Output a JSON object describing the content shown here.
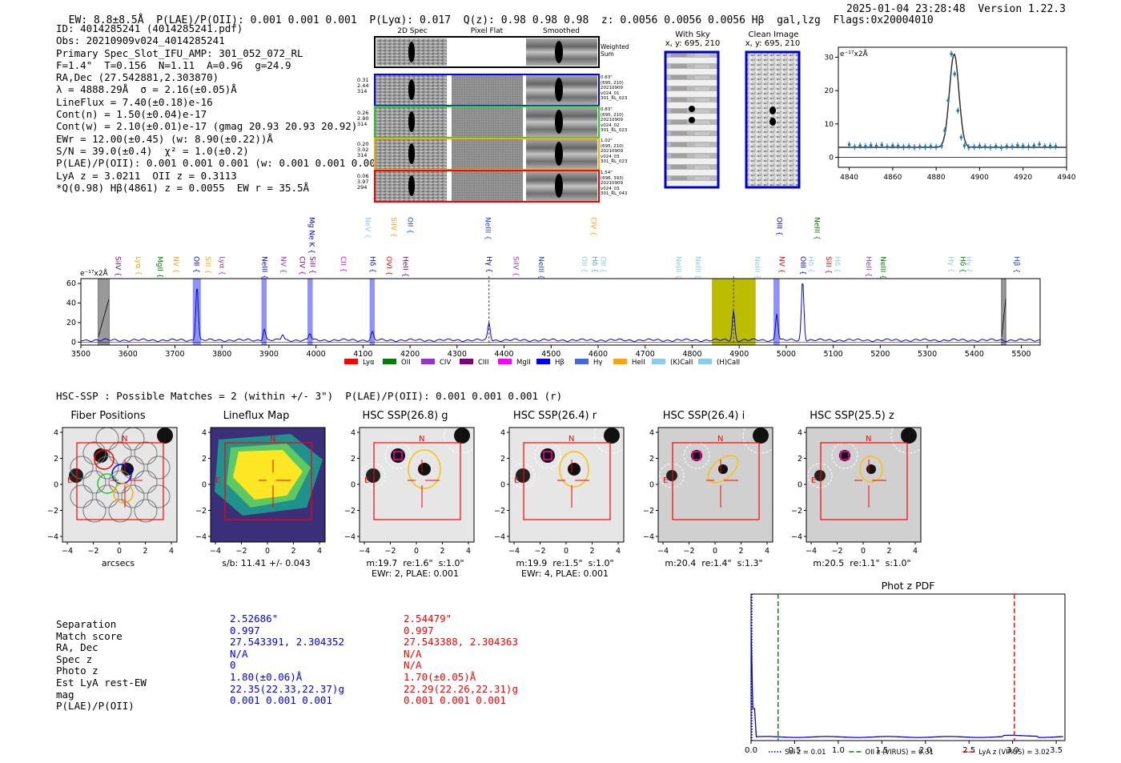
{
  "header": {
    "left": "EW: 8.8±8.5Å  P(LAE)/P(OII): 0.001 0.001 0.001  P(Lyα): 0.017  Q(z): 0.98 0.98 0.98  z: 0.0056 0.0056 0.0056 Hβ  gal,lzg  Flags:0x20004010",
    "right": "2025-01-04 23:28:48  Version 1.22.3"
  },
  "info": {
    "lines": [
      "ID: 4014285241 (4014285241.pdf)",
      "Obs: 20210909v024_4014285241",
      "Primary Spec_Slot_IFU_AMP: 301_052_072_RL",
      "F=1.4\"  T=0.156  N=1.11  A=0.96  g=24.9",
      "RA,Dec (27.542881,2.303870)",
      "λ = 4888.29Å  σ = 2.16(±0.05)Å",
      "LineFlux = 7.40(±0.18)e-16",
      "Cont(n) = 1.50(±0.04)e-17",
      "Cont(w) = 2.10(±0.01)e-17 (gmag 20.93 20.93 20.92)",
      "EWr = 12.00(±0.45) (w: 8.90(±0.22))Å",
      "S/N = 39.0(±0.4)  χ² = 1.0(±0.2)",
      "P(LAE)/P(OII): 0.001 0.001 0.001 (w: 0.001 0.001 0.001)",
      "LyA z = 3.0211  OII z = 0.3113",
      "*Q(0.98) Hβ(4861) z = 0.0055  EW r = 35.5Å"
    ]
  },
  "cutouts": {
    "col_titles": [
      "2D Spec",
      "Pixel Flat",
      "Smoothed"
    ],
    "weighted_label": "Weighted Sum",
    "rows": [
      {
        "left": [
          "0.31",
          "2.44",
          "314"
        ],
        "right": [
          "0.63\"",
          "(695, 210)",
          "20210909",
          "v024_01",
          "301_RL_023"
        ],
        "color": "#0000ff"
      },
      {
        "left": [
          "0.26",
          "2.90",
          "314"
        ],
        "right": [
          "0.83\"",
          "(695, 210)",
          "20210909",
          "v024_02",
          "301_RL_023"
        ],
        "color": "#22cc22"
      },
      {
        "left": [
          "0.20",
          "3.02",
          "314"
        ],
        "right": [
          "1.02\"",
          "(695, 210)",
          "20210909",
          "v024_03",
          "301_RL_023"
        ],
        "color": "#ffaa00"
      },
      {
        "left": [
          "0.06",
          "3.97",
          "294"
        ],
        "right": [
          "1.54\"",
          "(696, 393)",
          "20210909",
          "v024_03",
          "301_RL_043"
        ],
        "color": "#ff0000"
      }
    ]
  },
  "sky": {
    "with_sky_title": "With Sky",
    "with_sky_xy": "x, y: 695, 210",
    "clean_title": "Clean Image",
    "clean_xy": "x, y: 695, 210"
  },
  "zoom_chart": {
    "unit_label": "e⁻¹⁷x2Å",
    "xticks": [
      "4840",
      "4860",
      "4880",
      "4900",
      "4920",
      "4940"
    ],
    "yticks": [
      "0",
      "10",
      "20",
      "30"
    ]
  },
  "chart_data": [
    {
      "type": "scatter",
      "title": "",
      "xlabel": "",
      "ylabel": "e-17x2Å",
      "xlim": [
        4835,
        4940
      ],
      "ylim": [
        -3,
        33
      ],
      "x": [
        4840,
        4842.5,
        4845,
        4847.5,
        4850,
        4852.5,
        4855,
        4857.5,
        4860,
        4862.5,
        4865,
        4867.5,
        4870,
        4872.5,
        4875,
        4877.5,
        4880,
        4882.5,
        4884,
        4885.5,
        4887,
        4888.5,
        4890,
        4891.5,
        4893,
        4895,
        4897.5,
        4900,
        4902.5,
        4905,
        4907.5,
        4910,
        4912.5,
        4915,
        4917.5,
        4920,
        4922.5,
        4925,
        4927.5,
        4930,
        4932.5,
        4935
      ],
      "y": [
        3.8,
        3.1,
        3.5,
        3.3,
        3.6,
        3.4,
        3.7,
        3.2,
        3.5,
        3.4,
        3.1,
        3.3,
        3.0,
        3.2,
        3.1,
        3.3,
        3.1,
        3.4,
        8.0,
        17.0,
        31.0,
        25.0,
        14.0,
        6.0,
        3.5,
        3.0,
        3.1,
        3.4,
        3.2,
        3.0,
        3.3,
        2.9,
        3.3,
        3.2,
        3.6,
        3.4,
        3.2,
        3.5,
        3.9,
        3.3,
        3.4,
        3.3
      ],
      "fit": {
        "center": 4888.29,
        "sigma": 2.16,
        "continuum": 3.0,
        "amplitude": 28
      }
    },
    {
      "type": "line",
      "title": "",
      "ylabel": "e-17x2Å",
      "xlim": [
        3500,
        5540
      ],
      "ylim": [
        -3,
        65
      ],
      "xticks": [
        3500,
        3600,
        3700,
        3800,
        3900,
        4000,
        4100,
        4200,
        4300,
        4400,
        4500,
        4600,
        4700,
        4800,
        4900,
        5000,
        5100,
        5200,
        5300,
        5400,
        5500
      ],
      "yticks": [
        0,
        20,
        40,
        60
      ],
      "emission_peaks": [
        {
          "x": 3747,
          "height": 57
        },
        {
          "x": 3890,
          "height": 12
        },
        {
          "x": 3929,
          "height": 6
        },
        {
          "x": 3987,
          "height": 7
        },
        {
          "x": 4120,
          "height": 8
        },
        {
          "x": 4368,
          "height": 18
        },
        {
          "x": 4888,
          "height": 30
        },
        {
          "x": 4980,
          "height": 28
        },
        {
          "x": 5035,
          "height": 62
        }
      ],
      "continuum": 2,
      "shaded_regions": [
        {
          "x0": 3537,
          "x1": 3560,
          "kind": "masked"
        },
        {
          "x0": 3738,
          "x1": 3755,
          "kind": "line"
        },
        {
          "x0": 3884,
          "x1": 3895,
          "kind": "line"
        },
        {
          "x0": 3982,
          "x1": 3993,
          "kind": "line"
        },
        {
          "x0": 4114,
          "x1": 4125,
          "kind": "line"
        },
        {
          "x0": 4842,
          "x1": 4935,
          "kind": "fit-window"
        },
        {
          "x0": 4973,
          "x1": 4986,
          "kind": "line"
        },
        {
          "x0": 5458,
          "x1": 5467,
          "kind": "masked"
        }
      ],
      "dashed_markers": [
        4368,
        4888
      ],
      "line_labels_top": [
        {
          "text": "Mg Ne K",
          "x": 3990,
          "color": "#0000ff"
        },
        {
          "text": "NeV",
          "x": 4110,
          "color": "#87ceeb"
        },
        {
          "text": "SiIV",
          "x": 4165,
          "color": "#ffa500"
        },
        {
          "text": "OII",
          "x": 4200,
          "color": "#1e40ff"
        },
        {
          "text": "NeIII",
          "x": 4365,
          "color": "#1e40ff"
        },
        {
          "text": "CIV",
          "x": 4590,
          "color": "#ffa500"
        },
        {
          "text": "OIII",
          "x": 4985,
          "color": "#0000ff"
        },
        {
          "text": "NeIII",
          "x": 5065,
          "color": "#008000"
        }
      ],
      "line_labels_low": [
        {
          "text": "SiIV",
          "x": 3578,
          "color": "#800080"
        },
        {
          "text": "Lyα",
          "x": 3622,
          "color": "#ffa500"
        },
        {
          "text": "MgII",
          "x": 3668,
          "color": "#008000"
        },
        {
          "text": "NV",
          "x": 3702,
          "color": "#ffa500"
        },
        {
          "text": "OII",
          "x": 3745,
          "color": "#0000ff"
        },
        {
          "text": "SiII",
          "x": 3770,
          "color": "#ffa500"
        },
        {
          "text": "Lyα",
          "x": 3800,
          "color": "#9932cc"
        },
        {
          "text": "NeIII",
          "x": 3890,
          "color": "#0000ff"
        },
        {
          "text": "NV",
          "x": 3930,
          "color": "#9932cc"
        },
        {
          "text": "CIV",
          "x": 3970,
          "color": "#800080"
        },
        {
          "text": "SiII",
          "x": 3992,
          "color": "#800080"
        },
        {
          "text": "CII",
          "x": 4058,
          "color": "#ff00ff"
        },
        {
          "text": "Hδ",
          "x": 4120,
          "color": "#0000ff"
        },
        {
          "text": "OVI",
          "x": 4155,
          "color": "#ff0000"
        },
        {
          "text": "HeII",
          "x": 4190,
          "color": "#800080"
        },
        {
          "text": "Hγ",
          "x": 4368,
          "color": "#0000ff"
        },
        {
          "text": "SiIV",
          "x": 4425,
          "color": "#9932cc"
        },
        {
          "text": "NeIII",
          "x": 4478,
          "color": "#1e40ff"
        },
        {
          "text": "OII",
          "x": 4570,
          "color": "#87ceeb"
        },
        {
          "text": "Hδ",
          "x": 4592,
          "color": "#6495ed"
        },
        {
          "text": "OII",
          "x": 4610,
          "color": "#87ceeb"
        },
        {
          "text": "NeIII",
          "x": 4770,
          "color": "#87ceeb"
        },
        {
          "text": "NeIII",
          "x": 4812,
          "color": "#87ceeb"
        },
        {
          "text": "NeIII",
          "x": 4938,
          "color": "#87ceeb"
        },
        {
          "text": "NV",
          "x": 4990,
          "color": "#ff0000"
        },
        {
          "text": "OIII",
          "x": 5035,
          "color": "#0000ff"
        },
        {
          "text": "Hδ",
          "x": 5052,
          "color": "#87ceeb"
        },
        {
          "text": "SiII",
          "x": 5090,
          "color": "#ff0000"
        },
        {
          "text": "Hδ",
          "x": 5108,
          "color": "#87ceeb"
        },
        {
          "text": "HeII",
          "x": 5175,
          "color": "#9932cc"
        },
        {
          "text": "NeIII",
          "x": 5205,
          "color": "#008000"
        },
        {
          "text": "Hγ",
          "x": 5350,
          "color": "#87ceeb"
        },
        {
          "text": "Hδ",
          "x": 5375,
          "color": "#008000"
        },
        {
          "text": "Hγ",
          "x": 5388,
          "color": "#87ceeb"
        },
        {
          "text": "Hβ",
          "x": 5490,
          "color": "#1e40ff"
        }
      ],
      "legend": [
        {
          "label": "Lyα",
          "color": "#ff0000"
        },
        {
          "label": "OII",
          "color": "#008000"
        },
        {
          "label": "CIV",
          "color": "#9932cc"
        },
        {
          "label": "CIII",
          "color": "#800080"
        },
        {
          "label": "MgII",
          "color": "#ff00ff"
        },
        {
          "label": "Hβ",
          "color": "#0000ff"
        },
        {
          "label": "Hγ",
          "color": "#4169e1"
        },
        {
          "label": "HeII",
          "color": "#ffa500"
        },
        {
          "label": "(K)CaII",
          "color": "#87ceeb"
        },
        {
          "label": "(H)CaII",
          "color": "#87ceeb"
        }
      ]
    },
    {
      "type": "line",
      "title": "Phot z PDF",
      "xlim": [
        0,
        3.6
      ],
      "ylim": [
        0,
        1
      ],
      "xticks": [
        "0.0",
        "0.5",
        "1.0",
        "1.5",
        "2.0",
        "2.5",
        "3.0",
        "3.5"
      ],
      "markers": [
        {
          "x": 0.01,
          "label": "Sol z = 0.01",
          "color": "#0000ff",
          "style": "dotted"
        },
        {
          "x": 0.31,
          "label": "OII z (VIRUS) = 0.31",
          "color": "#008000",
          "style": "dashed"
        },
        {
          "x": 3.02,
          "label": "LyA z (VIRUS) = 3.02",
          "color": "#ff0000",
          "style": "dashed"
        }
      ]
    }
  ],
  "hsc": {
    "header": "HSC-SSP : Possible Matches = 2 (within +/- 3\")  P(LAE)/P(OII): 0.001 0.001 0.001 (r)",
    "panels": [
      {
        "title": "Fiber Positions",
        "caption1": "arcsecs",
        "caption2": ""
      },
      {
        "title": "Lineflux Map",
        "caption1": "s/b: 11.41 +/- 0.043",
        "caption2": ""
      },
      {
        "title": "HSC SSP(26.8) g",
        "caption1": "m:19.7  re:1.6\"  s:1.0\"",
        "caption2": "EWr: 2, PLAE: 0.001"
      },
      {
        "title": "HSC SSP(26.4) r",
        "caption1": "m:19.9  re:1.5\"  s:1.0\"",
        "caption2": "EWr: 4, PLAE: 0.001"
      },
      {
        "title": "HSC SSP(26.4) i",
        "caption1": "m:20.4  re:1.4\"  s:1.3\"",
        "caption2": ""
      },
      {
        "title": "HSC SSP(25.5) z",
        "caption1": "m:20.5  re:1.1\"  s:1.0\"",
        "caption2": ""
      }
    ],
    "ticks": [
      "4",
      "2",
      "0",
      "−2",
      "−4"
    ],
    "xticks": [
      "−4",
      "−2",
      "0",
      "2",
      "4"
    ],
    "n_label": "N",
    "e_label": "E"
  },
  "match_table": {
    "labels": [
      "Separation",
      "Match score",
      "RA, Dec",
      "Spec z",
      "Photo z",
      "Est LyA rest-EW",
      "mag",
      "P(LAE)/P(OII)"
    ],
    "col1": [
      "2.52686\"",
      "0.997",
      "27.543391, 2.304352",
      "N/A",
      "0",
      "1.80(±0.06)Å",
      "22.35(22.33,22.37)g",
      "0.001 0.001 0.001"
    ],
    "col2": [
      "2.54479\"",
      "0.997",
      "27.543388, 2.304363",
      "N/A",
      "N/A",
      "1.70(±0.05)Å",
      "22.29(22.26,22.31)g",
      "0.001 0.001 0.001"
    ]
  }
}
